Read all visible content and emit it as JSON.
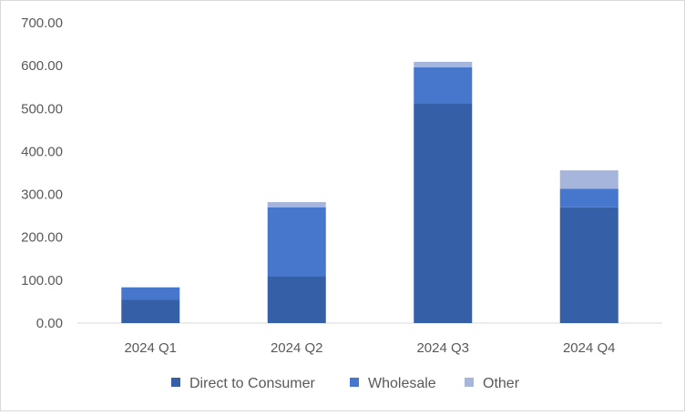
{
  "chart_data": {
    "type": "bar",
    "stacked": true,
    "title": "",
    "xlabel": "",
    "ylabel": "",
    "categories": [
      "2024 Q1",
      "2024 Q2",
      "2024 Q3",
      "2024 Q4"
    ],
    "series": [
      {
        "name": "Direct to Consumer",
        "values": [
          55,
          110,
          513,
          270
        ],
        "color": "#3560a8"
      },
      {
        "name": "Wholesale",
        "values": [
          28,
          160,
          83,
          43
        ],
        "color": "#4677cc"
      },
      {
        "name": "Other",
        "values": [
          1,
          12,
          13,
          43
        ],
        "color": "#a6b5db"
      }
    ],
    "ylim": [
      0,
      700
    ],
    "yticks": [
      "0.00",
      "100.00",
      "200.00",
      "300.00",
      "400.00",
      "500.00",
      "600.00",
      "700.00"
    ],
    "grid": false,
    "legend_position": "bottom"
  }
}
